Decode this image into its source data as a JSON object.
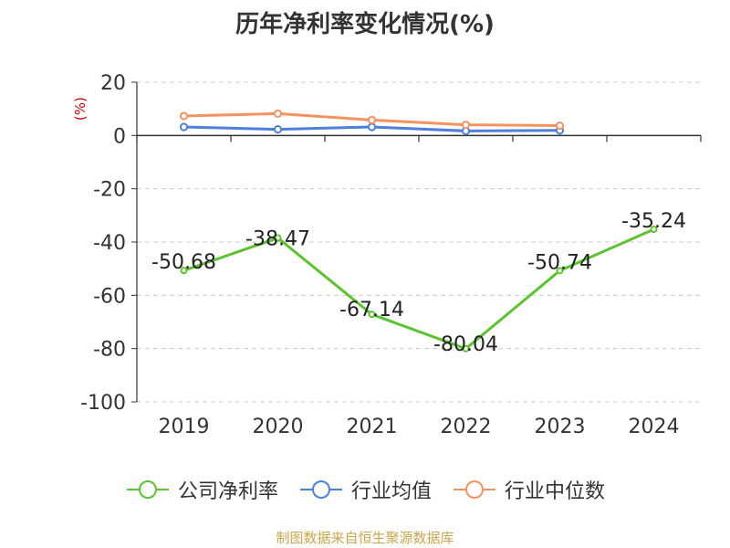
{
  "chart_data": {
    "type": "line",
    "title": "历年净利率变化情况(%)",
    "ylabel": "(%)",
    "xlabel": "",
    "categories": [
      "2019",
      "2020",
      "2021",
      "2022",
      "2023",
      "2024"
    ],
    "ylim": [
      -100,
      20
    ],
    "yticks": [
      20,
      0,
      -20,
      -40,
      -60,
      -80,
      -100
    ],
    "grid": true,
    "legend_position": "bottom",
    "series": [
      {
        "name": "公司净利率",
        "color": "#5cc42e",
        "values": [
          -50.68,
          -38.47,
          -67.14,
          -80.04,
          -50.74,
          -35.24
        ],
        "labels": [
          "-50.68",
          "-38.47",
          "-67.14",
          "-80.04",
          "-50.74",
          "-35.24"
        ]
      },
      {
        "name": "行业均值",
        "color": "#4f7fdc",
        "values": [
          3.2,
          2.3,
          3.2,
          1.7,
          1.9,
          null
        ]
      },
      {
        "name": "行业中位数",
        "color": "#f5935f",
        "values": [
          7.3,
          8.2,
          5.8,
          4.0,
          3.7,
          null
        ]
      }
    ]
  },
  "source": "制图数据来自恒生聚源数据库"
}
